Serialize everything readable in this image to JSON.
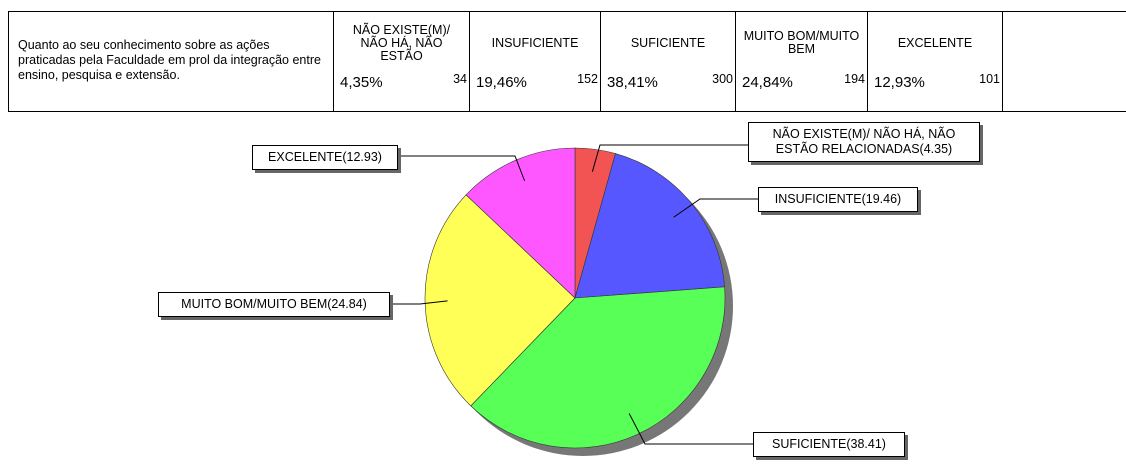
{
  "table": {
    "question": "Quanto ao seu conhecimento sobre as ações praticadas pela Faculdade em prol da integração entre ensino, pesquisa e extensão.",
    "columns": [
      {
        "header": "NÃO EXISTE(M)/ NÃO HÁ, NÃO ESTÃO",
        "percent": "4,35%",
        "count": 34
      },
      {
        "header": "INSUFICIENTE",
        "percent": "19,46%",
        "count": 152
      },
      {
        "header": "SUFICIENTE",
        "percent": "38,41%",
        "count": 300
      },
      {
        "header": "MUITO BOM/MUITO BEM",
        "percent": "24,84%",
        "count": 194
      },
      {
        "header": "EXCELENTE",
        "percent": "12,93%",
        "count": 101
      }
    ]
  },
  "chart_data": {
    "type": "pie",
    "values": [
      4.35,
      19.46,
      38.41,
      24.84,
      12.93
    ],
    "value_labels": [
      "NÃO EXISTE(M)/ NÃO HÁ, NÃO ESTÃO RELACIONADAS(4.35)",
      "INSUFICIENTE(19.46)",
      "SUFICIENTE(38.41)",
      "MUITO BOM/MUITO BEM(24.84)",
      "EXCELENTE(12.93)"
    ],
    "colors": [
      "#f25454",
      "#5757ff",
      "#57ff57",
      "#ffff57",
      "#ff57ff"
    ]
  }
}
